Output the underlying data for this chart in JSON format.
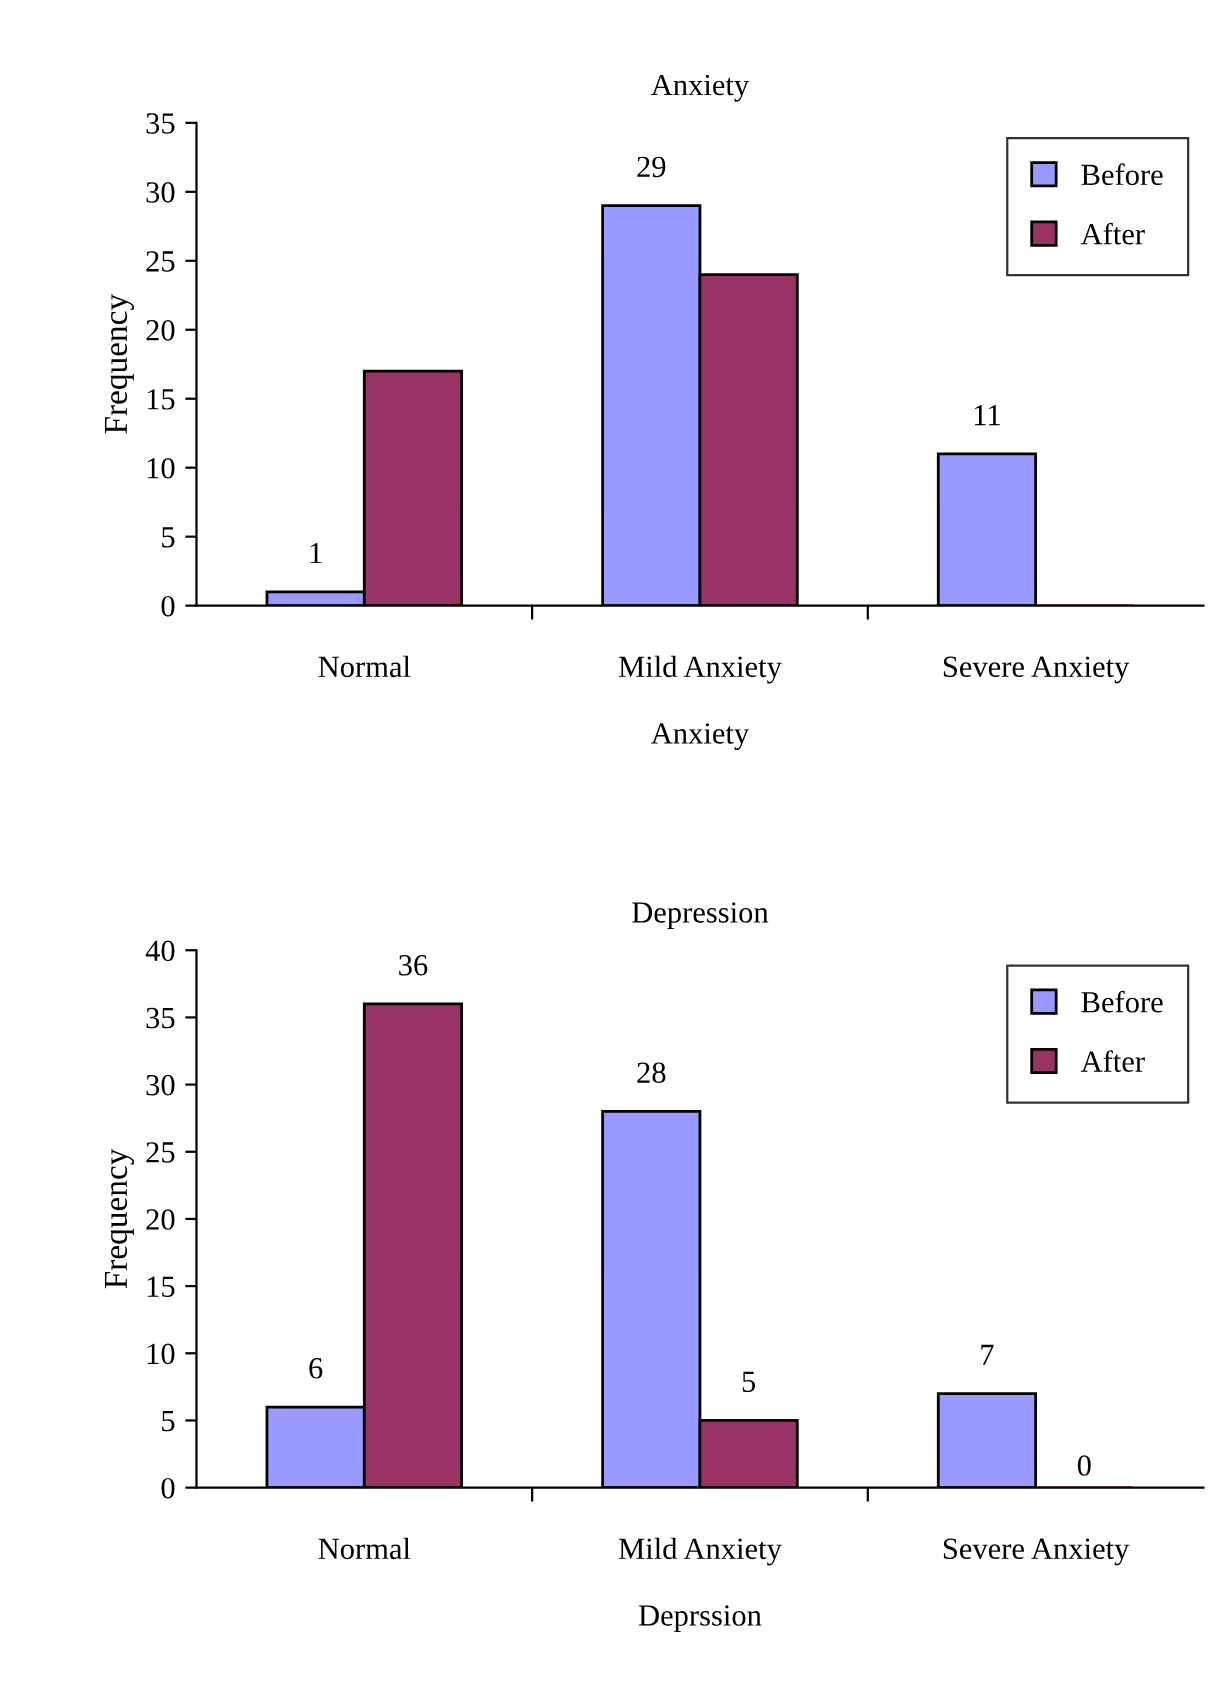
{
  "chart_data": [
    {
      "type": "bar",
      "title": "Anxiety",
      "xlabel": "Anxiety",
      "ylabel": "Frequency",
      "categories": [
        "Normal",
        "Mild Anxiety",
        "Severe Anxiety"
      ],
      "series": [
        {
          "name": "Before",
          "color": "#9999ff",
          "values": [
            1,
            29,
            11
          ],
          "value_labels": [
            "1",
            "29",
            "11"
          ]
        },
        {
          "name": "After",
          "color": "#993366",
          "values": [
            17,
            24,
            0
          ]
        }
      ],
      "ylim": [
        0,
        35
      ],
      "yticks": [
        0,
        5,
        10,
        15,
        20,
        25,
        30,
        35
      ],
      "legend": "top right",
      "grid": false
    },
    {
      "type": "bar",
      "title": "Depression",
      "xlabel": "Deprssion",
      "ylabel": "Frequency",
      "categories": [
        "Normal",
        "Mild Anxiety",
        "Severe Anxiety"
      ],
      "series": [
        {
          "name": "Before",
          "color": "#9999ff",
          "values": [
            6,
            28,
            7
          ]
        },
        {
          "name": "After",
          "color": "#993366",
          "values": [
            36,
            5,
            0
          ]
        }
      ],
      "data_labels": true,
      "ylim": [
        0,
        40
      ],
      "yticks": [
        0,
        5,
        10,
        15,
        20,
        25,
        30,
        35,
        40
      ],
      "legend": "top right",
      "grid": false
    }
  ]
}
